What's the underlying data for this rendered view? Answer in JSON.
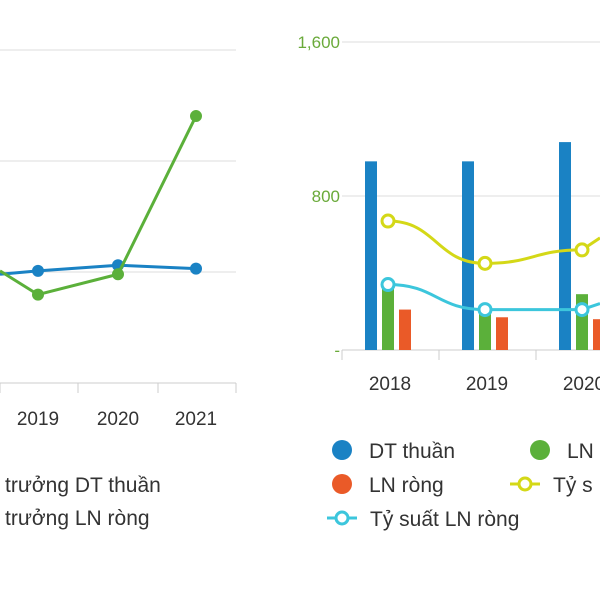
{
  "colors": {
    "blue": "#1a82c4",
    "green": "#5bb03a",
    "orange": "#ea5a28",
    "yellow": "#d4d817",
    "cyan": "#3cc6dc"
  },
  "chart_data": [
    {
      "type": "line",
      "categories": [
        "2019",
        "2020",
        "2021"
      ],
      "series": [
        {
          "name": "trưởng DT thuần",
          "values": [
            1,
            6,
            3
          ]
        },
        {
          "name": "trưởng LN ròng",
          "values": [
            -20,
            -2,
            138
          ]
        }
      ],
      "legend": "bottom"
    },
    {
      "type": "bar",
      "categories": [
        "2018",
        "2019",
        "2020"
      ],
      "yticks": [
        "1,600",
        "800",
        "-"
      ],
      "ylim": [
        0,
        1600
      ],
      "series": [
        {
          "name": "DT thuần",
          "kind": "bar",
          "values": [
            980,
            980,
            1080
          ]
        },
        {
          "name": "LN",
          "kind": "bar",
          "values": [
            330,
            210,
            290
          ]
        },
        {
          "name": "LN ròng",
          "kind": "bar",
          "values": [
            210,
            170,
            160
          ]
        },
        {
          "name": "Tỷ s",
          "kind": "line",
          "values": [
            670,
            450,
            520
          ]
        },
        {
          "name": "Tỷ suất LN ròng",
          "kind": "line",
          "values": [
            340,
            210,
            210
          ]
        }
      ],
      "legend": "bottom"
    }
  ]
}
